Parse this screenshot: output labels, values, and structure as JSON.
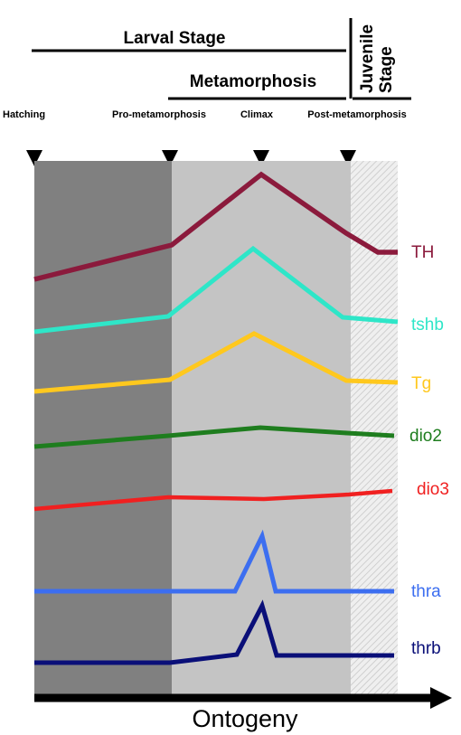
{
  "headers": {
    "larval_stage": "Larval Stage",
    "metamorphosis": "Metamorphosis",
    "juvenile_line1": "Juvenile",
    "juvenile_line2": "Stage"
  },
  "stages": [
    {
      "id": "hatching",
      "label": "Hatching"
    },
    {
      "id": "pro-metamorphosis",
      "label": "Pro-metamorphosis"
    },
    {
      "id": "climax",
      "label": "Climax"
    },
    {
      "id": "post-metamorphosis",
      "label": "Post-metamorphosis"
    }
  ],
  "genes": [
    {
      "id": "th",
      "label": "TH",
      "color": "#8B1A3C"
    },
    {
      "id": "tshb",
      "label": "tshb",
      "color": "#2EE6C8"
    },
    {
      "id": "tg",
      "label": "Tg",
      "color": "#FFC81E"
    },
    {
      "id": "dio2",
      "label": "dio2",
      "color": "#1E7D1E"
    },
    {
      "id": "dio3",
      "label": "dio3",
      "color": "#F02020"
    },
    {
      "id": "thra",
      "label": "thra",
      "color": "#3C6EF0"
    },
    {
      "id": "thrb",
      "label": "thrb",
      "color": "#0A0F78"
    }
  ],
  "colors": {
    "larval_panel": "#808080",
    "metamorphosis_panel": "#C4C4C4",
    "juvenile_panel": "#EFEFEF",
    "axis": "#000000"
  },
  "axis": {
    "label": "Ontogeny"
  }
}
